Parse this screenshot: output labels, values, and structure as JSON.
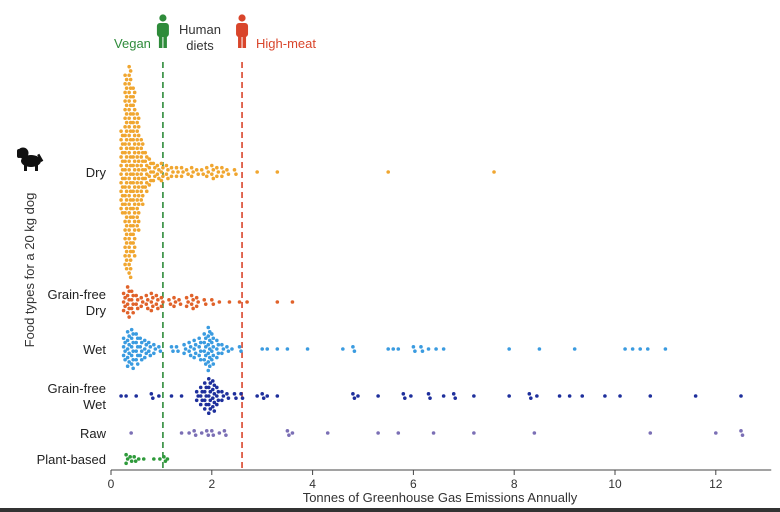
{
  "chart_data": {
    "type": "scatter",
    "subtype": "beeswarm",
    "xlabel": "Tonnes of Greenhouse Gas Emissions Annually",
    "ylabel": "Food types for a 20 kg dog",
    "xlim": [
      0,
      13.1
    ],
    "xticks": [
      0,
      2,
      4,
      6,
      8,
      10,
      12
    ],
    "grid": false,
    "reference_lines": [
      {
        "label": "Vegan",
        "value": 1.03,
        "color": "#2e8b3a"
      },
      {
        "label": "High-meat",
        "value": 2.6,
        "color": "#d9452b"
      }
    ],
    "reference_header": "Human diets",
    "series": [
      {
        "name": "Dry",
        "color": "#f0a630",
        "bins": [
          [
            0.2,
            20
          ],
          [
            0.28,
            46
          ],
          [
            0.36,
            50
          ],
          [
            0.44,
            40
          ],
          [
            0.52,
            28
          ],
          [
            0.6,
            16
          ],
          [
            0.68,
            10
          ],
          [
            0.76,
            7
          ],
          [
            0.84,
            5
          ],
          [
            0.92,
            4
          ],
          [
            1.0,
            5
          ],
          [
            1.1,
            4
          ],
          [
            1.2,
            3
          ],
          [
            1.3,
            3
          ],
          [
            1.4,
            3
          ],
          [
            1.5,
            2
          ],
          [
            1.6,
            3
          ],
          [
            1.7,
            2
          ],
          [
            1.8,
            2
          ],
          [
            1.9,
            3
          ],
          [
            2.0,
            4
          ],
          [
            2.1,
            3
          ],
          [
            2.2,
            3
          ],
          [
            2.3,
            2
          ],
          [
            2.45,
            2
          ],
          [
            2.9,
            1
          ],
          [
            3.3,
            1
          ],
          [
            5.5,
            1
          ],
          [
            7.6,
            1
          ]
        ]
      },
      {
        "name": "Grain-free Dry",
        "color": "#e0622a",
        "bins": [
          [
            0.25,
            5
          ],
          [
            0.33,
            8
          ],
          [
            0.41,
            6
          ],
          [
            0.5,
            4
          ],
          [
            0.6,
            3
          ],
          [
            0.7,
            4
          ],
          [
            0.8,
            5
          ],
          [
            0.9,
            4
          ],
          [
            1.0,
            3
          ],
          [
            1.15,
            2
          ],
          [
            1.25,
            3
          ],
          [
            1.35,
            2
          ],
          [
            1.5,
            3
          ],
          [
            1.6,
            4
          ],
          [
            1.7,
            3
          ],
          [
            1.85,
            2
          ],
          [
            2.0,
            2
          ],
          [
            2.15,
            1
          ],
          [
            2.35,
            1
          ],
          [
            2.55,
            1
          ],
          [
            2.7,
            1
          ],
          [
            3.3,
            1
          ],
          [
            3.6,
            1
          ]
        ]
      },
      {
        "name": "Wet",
        "color": "#3a9be0",
        "bins": [
          [
            0.25,
            6
          ],
          [
            0.33,
            9
          ],
          [
            0.41,
            10
          ],
          [
            0.5,
            8
          ],
          [
            0.58,
            6
          ],
          [
            0.67,
            5
          ],
          [
            0.75,
            4
          ],
          [
            0.85,
            3
          ],
          [
            0.95,
            2
          ],
          [
            1.2,
            2
          ],
          [
            1.3,
            2
          ],
          [
            1.45,
            3
          ],
          [
            1.55,
            4
          ],
          [
            1.65,
            5
          ],
          [
            1.75,
            6
          ],
          [
            1.85,
            8
          ],
          [
            1.93,
            11
          ],
          [
            2.0,
            8
          ],
          [
            2.1,
            5
          ],
          [
            2.2,
            3
          ],
          [
            2.3,
            2
          ],
          [
            2.4,
            1
          ],
          [
            2.55,
            2
          ],
          [
            3.0,
            1
          ],
          [
            3.1,
            1
          ],
          [
            3.3,
            1
          ],
          [
            3.5,
            1
          ],
          [
            3.9,
            1
          ],
          [
            4.6,
            1
          ],
          [
            4.8,
            2
          ],
          [
            5.5,
            1
          ],
          [
            5.6,
            1
          ],
          [
            5.7,
            1
          ],
          [
            6.0,
            2
          ],
          [
            6.15,
            2
          ],
          [
            6.3,
            1
          ],
          [
            6.45,
            1
          ],
          [
            6.6,
            1
          ],
          [
            7.9,
            1
          ],
          [
            8.5,
            1
          ],
          [
            9.2,
            1
          ],
          [
            10.2,
            1
          ],
          [
            10.35,
            1
          ],
          [
            10.5,
            1
          ],
          [
            10.65,
            1
          ],
          [
            11.0,
            1
          ]
        ]
      },
      {
        "name": "Grain-free Wet",
        "color": "#1e2f9c",
        "bins": [
          [
            0.2,
            1
          ],
          [
            0.3,
            1
          ],
          [
            0.5,
            1
          ],
          [
            0.8,
            2
          ],
          [
            0.95,
            1
          ],
          [
            1.2,
            1
          ],
          [
            1.4,
            1
          ],
          [
            1.7,
            3
          ],
          [
            1.78,
            5
          ],
          [
            1.86,
            7
          ],
          [
            1.94,
            9
          ],
          [
            2.02,
            8
          ],
          [
            2.1,
            5
          ],
          [
            2.2,
            3
          ],
          [
            2.3,
            2
          ],
          [
            2.45,
            2
          ],
          [
            2.58,
            2
          ],
          [
            2.9,
            1
          ],
          [
            3.0,
            2
          ],
          [
            3.1,
            1
          ],
          [
            3.3,
            1
          ],
          [
            4.8,
            2
          ],
          [
            4.9,
            1
          ],
          [
            5.3,
            1
          ],
          [
            5.8,
            2
          ],
          [
            5.95,
            1
          ],
          [
            6.3,
            2
          ],
          [
            6.6,
            1
          ],
          [
            6.8,
            2
          ],
          [
            7.2,
            1
          ],
          [
            7.9,
            1
          ],
          [
            8.3,
            2
          ],
          [
            8.45,
            1
          ],
          [
            8.9,
            1
          ],
          [
            9.1,
            1
          ],
          [
            9.35,
            1
          ],
          [
            9.8,
            1
          ],
          [
            10.1,
            1
          ],
          [
            10.7,
            1
          ],
          [
            11.6,
            1
          ],
          [
            12.5,
            1
          ]
        ]
      },
      {
        "name": "Raw",
        "color": "#7b6fb5",
        "bins": [
          [
            0.4,
            1
          ],
          [
            1.4,
            1
          ],
          [
            1.55,
            1
          ],
          [
            1.65,
            2
          ],
          [
            1.8,
            1
          ],
          [
            1.9,
            2
          ],
          [
            2.0,
            2
          ],
          [
            2.15,
            1
          ],
          [
            2.25,
            2
          ],
          [
            3.5,
            2
          ],
          [
            3.6,
            1
          ],
          [
            4.3,
            1
          ],
          [
            5.3,
            1
          ],
          [
            5.7,
            1
          ],
          [
            6.4,
            1
          ],
          [
            7.2,
            1
          ],
          [
            8.4,
            1
          ],
          [
            10.7,
            1
          ],
          [
            12.0,
            1
          ],
          [
            12.5,
            2
          ]
        ]
      },
      {
        "name": "Plant-based",
        "color": "#2e9a3a",
        "bins": [
          [
            0.3,
            3
          ],
          [
            0.38,
            2
          ],
          [
            0.46,
            2
          ],
          [
            0.55,
            1
          ],
          [
            0.65,
            1
          ],
          [
            0.85,
            1
          ],
          [
            0.97,
            1
          ],
          [
            1.05,
            2
          ],
          [
            1.12,
            1
          ]
        ]
      }
    ],
    "category_labels": [
      "Dry",
      "Grain-free\nDry",
      "Wet",
      "Grain-free\nWet",
      "Raw",
      "Plant-based"
    ]
  }
}
